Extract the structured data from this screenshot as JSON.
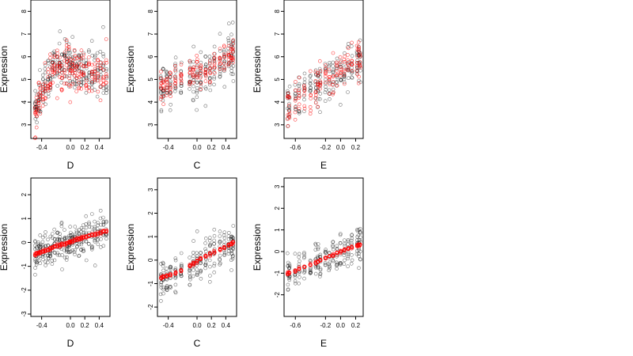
{
  "chart_data": [
    {
      "type": "scatter",
      "xlabel": "D",
      "ylabel": "Expression",
      "xlim": [
        -0.55,
        0.55
      ],
      "ylim": [
        2.4,
        8.5
      ],
      "xticks": [
        {
          "v": -0.4,
          "label": "-0.4"
        },
        {
          "v": 0.0,
          "label": "0.0"
        },
        {
          "v": 0.2,
          "label": "0.2"
        },
        {
          "v": 0.4,
          "label": "0.4"
        }
      ],
      "yticks": [
        {
          "v": 3,
          "label": "3"
        },
        {
          "v": 4,
          "label": "4"
        },
        {
          "v": 5,
          "label": "5"
        },
        {
          "v": 6,
          "label": "6"
        },
        {
          "v": 7,
          "label": "7"
        },
        {
          "v": 8,
          "label": "8"
        }
      ],
      "x_values": [
        -0.49,
        -0.47,
        -0.44,
        -0.42,
        -0.38,
        -0.35,
        -0.31,
        -0.28,
        -0.25,
        -0.22,
        -0.18,
        -0.15,
        -0.12,
        -0.08,
        -0.05,
        -0.02,
        0.0,
        0.03,
        0.06,
        0.09,
        0.12,
        0.15,
        0.18,
        0.22,
        0.26,
        0.3,
        0.34,
        0.38,
        0.42,
        0.46,
        0.5
      ],
      "series": [
        {
          "color": "#000000",
          "spread": 1.0,
          "points_per_x": 9,
          "y_center": [
            3.8,
            3.9,
            4.2,
            4.4,
            4.7,
            4.9,
            5.1,
            5.2,
            5.4,
            5.6,
            5.6,
            5.8,
            5.5,
            5.6,
            5.7,
            5.9,
            5.7,
            5.6,
            5.5,
            5.4,
            5.5,
            5.3,
            5.4,
            5.5,
            5.3,
            5.2,
            5.4,
            5.3,
            5.2,
            5.4,
            5.3
          ]
        },
        {
          "color": "#ff0000",
          "spread": 0.9,
          "points_per_x": 7,
          "y_center": [
            3.5,
            3.8,
            4.1,
            4.3,
            4.5,
            4.8,
            5.0,
            5.2,
            5.5,
            5.6,
            5.7,
            5.6,
            5.4,
            5.6,
            5.8,
            5.7,
            5.5,
            5.4,
            5.5,
            5.3,
            5.2,
            5.4,
            5.3,
            5.1,
            5.2,
            5.1,
            5.3,
            5.2,
            5.0,
            5.2,
            5.3
          ]
        }
      ]
    },
    {
      "type": "scatter",
      "xlabel": "C",
      "ylabel": "Expression",
      "xlim": [
        -0.55,
        0.55
      ],
      "ylim": [
        2.4,
        8.5
      ],
      "xticks": [
        {
          "v": -0.4,
          "label": "-0.4"
        },
        {
          "v": 0.0,
          "label": "0.0"
        },
        {
          "v": 0.2,
          "label": "0.2"
        },
        {
          "v": 0.4,
          "label": "0.4"
        }
      ],
      "yticks": [
        {
          "v": 3,
          "label": "3"
        },
        {
          "v": 4,
          "label": "4"
        },
        {
          "v": 5,
          "label": "5"
        },
        {
          "v": 6,
          "label": "6"
        },
        {
          "v": 7,
          "label": "7"
        },
        {
          "v": 8,
          "label": "8"
        }
      ],
      "x_values": [
        -0.5,
        -0.47,
        -0.42,
        -0.37,
        -0.3,
        -0.22,
        -0.1,
        -0.05,
        0.0,
        0.05,
        0.12,
        0.18,
        0.24,
        0.32,
        0.38,
        0.44,
        0.48,
        0.5
      ],
      "series": [
        {
          "color": "#000000",
          "spread": 1.1,
          "points_per_x": 12,
          "y_center": [
            4.5,
            4.6,
            4.7,
            4.7,
            4.8,
            4.9,
            5.0,
            5.1,
            4.9,
            5.2,
            5.4,
            5.5,
            5.4,
            5.7,
            5.8,
            6.0,
            6.1,
            6.2
          ]
        },
        {
          "color": "#ff0000",
          "spread": 0.7,
          "points_per_x": 8,
          "y_center": [
            4.4,
            4.5,
            4.6,
            4.7,
            4.9,
            5.0,
            5.1,
            5.2,
            5.2,
            5.3,
            5.4,
            5.5,
            5.6,
            5.8,
            5.9,
            6.0,
            6.2,
            6.3
          ]
        }
      ]
    },
    {
      "type": "scatter",
      "xlabel": "E",
      "ylabel": "Expression",
      "xlim": [
        -0.75,
        0.3
      ],
      "ylim": [
        2.4,
        8.5
      ],
      "xticks": [
        {
          "v": -0.6,
          "label": "-0.6"
        },
        {
          "v": -0.2,
          "label": "-0.2"
        },
        {
          "v": 0.0,
          "label": "0.0"
        },
        {
          "v": 0.2,
          "label": "0.2"
        }
      ],
      "yticks": [
        {
          "v": 3,
          "label": "3"
        },
        {
          "v": 4,
          "label": "4"
        },
        {
          "v": 5,
          "label": "5"
        },
        {
          "v": 6,
          "label": "6"
        },
        {
          "v": 7,
          "label": "7"
        },
        {
          "v": 8,
          "label": "8"
        }
      ],
      "x_values": [
        -0.7,
        -0.68,
        -0.6,
        -0.55,
        -0.48,
        -0.4,
        -0.33,
        -0.3,
        -0.27,
        -0.2,
        -0.15,
        -0.1,
        -0.05,
        0.0,
        0.05,
        0.1,
        0.15,
        0.22,
        0.24,
        0.26
      ],
      "series": [
        {
          "color": "#000000",
          "spread": 1.0,
          "points_per_x": 10,
          "y_center": [
            4.0,
            4.1,
            4.1,
            4.2,
            4.4,
            4.5,
            4.6,
            4.7,
            4.8,
            5.0,
            5.1,
            5.1,
            5.2,
            5.3,
            5.3,
            5.4,
            5.5,
            5.6,
            5.7,
            5.8
          ]
        },
        {
          "color": "#ff0000",
          "spread": 0.9,
          "points_per_x": 7,
          "y_center": [
            3.8,
            3.9,
            4.1,
            4.3,
            4.4,
            4.5,
            4.7,
            4.8,
            4.9,
            5.0,
            5.1,
            5.2,
            5.3,
            5.4,
            5.5,
            5.6,
            5.8,
            5.8,
            5.9,
            6.0
          ]
        }
      ]
    },
    {
      "type": "scatter",
      "xlabel": "D",
      "ylabel": "Expression",
      "xlim": [
        -0.55,
        0.55
      ],
      "ylim": [
        -3.1,
        2.7
      ],
      "xticks": [
        {
          "v": -0.4,
          "label": "-0.4"
        },
        {
          "v": 0.0,
          "label": "0.0"
        },
        {
          "v": 0.2,
          "label": "0.2"
        },
        {
          "v": 0.4,
          "label": "0.4"
        }
      ],
      "yticks": [
        {
          "v": -3,
          "label": "-3"
        },
        {
          "v": -2,
          "label": "-2"
        },
        {
          "v": -1,
          "label": "-1"
        },
        {
          "v": 0,
          "label": "0"
        },
        {
          "v": 1,
          "label": "1"
        },
        {
          "v": 2,
          "label": "2"
        }
      ],
      "x_values": [
        -0.49,
        -0.47,
        -0.44,
        -0.42,
        -0.38,
        -0.35,
        -0.31,
        -0.28,
        -0.25,
        -0.22,
        -0.18,
        -0.15,
        -0.12,
        -0.08,
        -0.05,
        -0.02,
        0.0,
        0.03,
        0.06,
        0.09,
        0.12,
        0.15,
        0.18,
        0.22,
        0.26,
        0.3,
        0.34,
        0.38,
        0.42,
        0.46,
        0.5
      ],
      "series": [
        {
          "color": "#000000",
          "spread": 0.7,
          "points_per_x": 9,
          "y_center": [
            -0.5,
            -0.48,
            -0.45,
            -0.42,
            -0.38,
            -0.34,
            -0.3,
            -0.26,
            -0.22,
            -0.18,
            -0.15,
            -0.12,
            -0.08,
            -0.05,
            -0.02,
            0.0,
            0.03,
            0.06,
            0.09,
            0.12,
            0.15,
            0.18,
            0.21,
            0.24,
            0.28,
            0.32,
            0.35,
            0.38,
            0.42,
            0.46,
            0.5
          ]
        },
        {
          "color": "#ff0000",
          "spread": 0.06,
          "points_per_x": 7,
          "y_center": [
            -0.5,
            -0.48,
            -0.45,
            -0.42,
            -0.38,
            -0.34,
            -0.3,
            -0.26,
            -0.22,
            -0.18,
            -0.15,
            -0.12,
            -0.08,
            -0.05,
            -0.02,
            0.0,
            0.03,
            0.06,
            0.09,
            0.12,
            0.15,
            0.18,
            0.21,
            0.24,
            0.28,
            0.32,
            0.35,
            0.38,
            0.42,
            0.46,
            0.5
          ]
        }
      ]
    },
    {
      "type": "scatter",
      "xlabel": "C",
      "ylabel": "Expression",
      "xlim": [
        -0.55,
        0.55
      ],
      "ylim": [
        -2.4,
        3.5
      ],
      "xticks": [
        {
          "v": -0.4,
          "label": "-0.4"
        },
        {
          "v": 0.0,
          "label": "0.0"
        },
        {
          "v": 0.2,
          "label": "0.2"
        },
        {
          "v": 0.4,
          "label": "0.4"
        }
      ],
      "yticks": [
        {
          "v": -2,
          "label": "-2"
        },
        {
          "v": -1,
          "label": "-1"
        },
        {
          "v": 0,
          "label": "0"
        },
        {
          "v": 1,
          "label": "1"
        },
        {
          "v": 2,
          "label": "2"
        },
        {
          "v": 3,
          "label": "3"
        }
      ],
      "x_values": [
        -0.5,
        -0.47,
        -0.42,
        -0.37,
        -0.3,
        -0.22,
        -0.1,
        -0.05,
        0.0,
        0.05,
        0.12,
        0.18,
        0.24,
        0.32,
        0.38,
        0.44,
        0.48,
        0.5
      ],
      "series": [
        {
          "color": "#000000",
          "spread": 0.75,
          "points_per_x": 12,
          "y_center": [
            -0.75,
            -0.72,
            -0.68,
            -0.62,
            -0.55,
            -0.45,
            -0.25,
            -0.15,
            -0.05,
            0.05,
            0.15,
            0.25,
            0.32,
            0.45,
            0.55,
            0.65,
            0.7,
            0.75
          ]
        },
        {
          "color": "#ff0000",
          "spread": 0.06,
          "points_per_x": 8,
          "y_center": [
            -0.75,
            -0.72,
            -0.68,
            -0.62,
            -0.55,
            -0.45,
            -0.25,
            -0.15,
            -0.05,
            0.05,
            0.15,
            0.25,
            0.32,
            0.45,
            0.55,
            0.65,
            0.7,
            0.75
          ]
        }
      ]
    },
    {
      "type": "scatter",
      "xlabel": "E",
      "ylabel": "Expression",
      "xlim": [
        -0.75,
        0.3
      ],
      "ylim": [
        -3.0,
        3.4
      ],
      "xticks": [
        {
          "v": -0.6,
          "label": "-0.6"
        },
        {
          "v": -0.2,
          "label": "-0.2"
        },
        {
          "v": 0.0,
          "label": "0.0"
        },
        {
          "v": 0.2,
          "label": "0.2"
        }
      ],
      "yticks": [
        {
          "v": -2,
          "label": "-2"
        },
        {
          "v": -1,
          "label": "-1"
        },
        {
          "v": 0,
          "label": "0"
        },
        {
          "v": 1,
          "label": "1"
        },
        {
          "v": 2,
          "label": "2"
        },
        {
          "v": 3,
          "label": "3"
        }
      ],
      "x_values": [
        -0.7,
        -0.68,
        -0.6,
        -0.55,
        -0.48,
        -0.4,
        -0.33,
        -0.3,
        -0.27,
        -0.2,
        -0.15,
        -0.1,
        -0.05,
        0.0,
        0.05,
        0.1,
        0.15,
        0.22,
        0.24,
        0.26
      ],
      "series": [
        {
          "color": "#000000",
          "spread": 0.8,
          "points_per_x": 10,
          "y_center": [
            -1.0,
            -0.98,
            -0.9,
            -0.8,
            -0.72,
            -0.62,
            -0.52,
            -0.45,
            -0.4,
            -0.3,
            -0.22,
            -0.15,
            -0.08,
            0.0,
            0.06,
            0.12,
            0.2,
            0.28,
            0.3,
            0.32
          ]
        },
        {
          "color": "#ff0000",
          "spread": 0.06,
          "points_per_x": 7,
          "y_center": [
            -1.0,
            -0.98,
            -0.9,
            -0.8,
            -0.72,
            -0.62,
            -0.52,
            -0.45,
            -0.4,
            -0.3,
            -0.22,
            -0.15,
            -0.08,
            0.0,
            0.06,
            0.12,
            0.2,
            0.28,
            0.3,
            0.32
          ]
        }
      ]
    }
  ]
}
